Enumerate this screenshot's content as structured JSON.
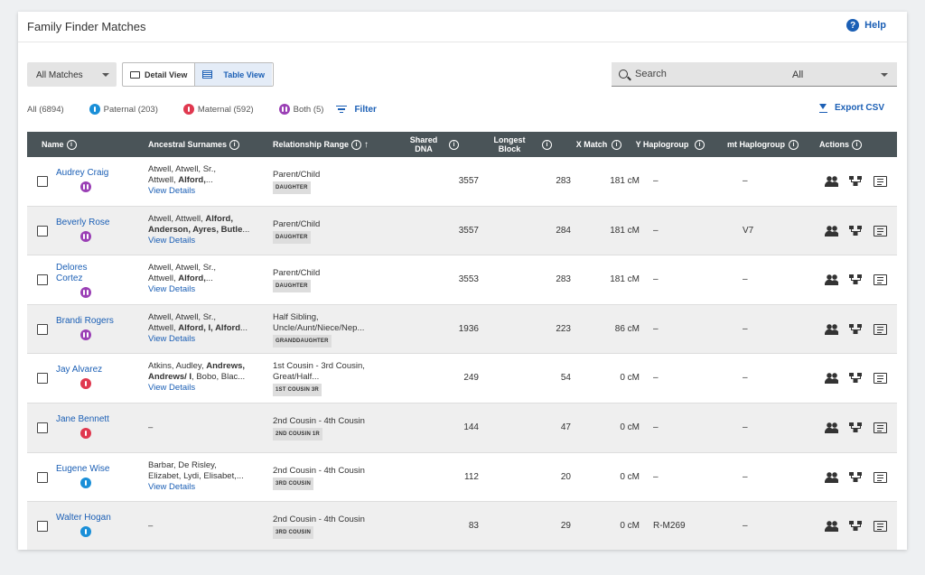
{
  "header": {
    "title": "Family Finder Matches",
    "help": "Help"
  },
  "toolbar": {
    "match_filter": "All Matches",
    "detail_view": "Detail View",
    "table_view": "Table View",
    "search_placeholder": "Search",
    "search_scope": "All"
  },
  "filters": {
    "all": "All (6894)",
    "paternal": "Paternal (203)",
    "maternal": "Maternal (592)",
    "both": "Both (5)",
    "filter": "Filter",
    "export": "Export CSV"
  },
  "colors": {
    "paternal": "#1a8fd8",
    "maternal": "#e0384f",
    "both": "#9a3fb5",
    "accent": "#1b5fb5",
    "table_header": "#4a5458"
  },
  "columns": {
    "name": "Name",
    "surnames": "Ancestral Surnames",
    "relationship": "Relationship Range",
    "shared": "Shared DNA",
    "longest": "Longest Block",
    "x": "X Match",
    "y": "Y Haplogroup",
    "mt": "mt Haplogroup",
    "actions": "Actions"
  },
  "rows": [
    {
      "name": "Audrey Craig",
      "side": "both",
      "surn_a": "Atwell, Atwell, Sr.,",
      "surn_b": "Attwell, ",
      "surn_bold": "Alford,",
      "surn_c": "...",
      "view": "View Details",
      "rel": "Parent/Child",
      "rel2": "",
      "tag": "DAUGHTER",
      "shared": "3557",
      "longest": "283",
      "x": "181 cM",
      "y": "–",
      "mt": "–"
    },
    {
      "name": "Beverly Rose",
      "side": "both",
      "surn_a": "Atwell, Attwell, ",
      "surn_bold_a": "Alford,",
      "surn_b": "",
      "surn_bold": "Anderson, Ayres, Butle",
      "surn_c": "...",
      "view": "View Details",
      "rel": "Parent/Child",
      "rel2": "",
      "tag": "DAUGHTER",
      "shared": "3557",
      "longest": "284",
      "x": "181 cM",
      "y": "–",
      "mt": "V7"
    },
    {
      "name": "Delores Cortez",
      "side": "both",
      "surn_a": "Atwell, Atwell, Sr.,",
      "surn_b": "Attwell, ",
      "surn_bold": "Alford,",
      "surn_c": "...",
      "view": "View Details",
      "rel": "Parent/Child",
      "rel2": "",
      "tag": "DAUGHTER",
      "shared": "3553",
      "longest": "283",
      "x": "181 cM",
      "y": "–",
      "mt": "–"
    },
    {
      "name": "Brandi Rogers",
      "side": "both",
      "surn_a": "Atwell, Atwell, Sr.,",
      "surn_b": "Attwell, ",
      "surn_bold": "Alford, I, Alford",
      "surn_c": "...",
      "view": "View Details",
      "rel": "Half Sibling,",
      "rel2": "Uncle/Aunt/Niece/Nep...",
      "tag": "GRANDDAUGHTER",
      "shared": "1936",
      "longest": "223",
      "x": "86 cM",
      "y": "–",
      "mt": "–"
    },
    {
      "name": "Jay Alvarez",
      "side": "maternal",
      "surn_a": "Atkins, Audley, ",
      "surn_bold_a": "Andrews,",
      "surn_b": "",
      "surn_bold": "Andrews/ I",
      "surn_c": ", Bobo, Blac...",
      "view": "View Details",
      "rel": "1st Cousin - 3rd Cousin,",
      "rel2": "Great/Half...",
      "tag": "1ST COUSIN 3R",
      "shared": "249",
      "longest": "54",
      "x": "0 cM",
      "y": "–",
      "mt": "–"
    },
    {
      "name": "Jane Bennett",
      "side": "maternal",
      "surn_a": "–",
      "surn_b": "",
      "surn_bold": "",
      "surn_c": "",
      "view": "",
      "rel": "2nd Cousin - 4th Cousin",
      "rel2": "",
      "tag": "2ND COUSIN 1R",
      "shared": "144",
      "longest": "47",
      "x": "0 cM",
      "y": "–",
      "mt": "–"
    },
    {
      "name": "Eugene Wise",
      "side": "paternal",
      "surn_a": "Barbar, De Risley,",
      "surn_b": "Elizabet, Lydi, Elisabet,",
      "surn_bold": "",
      "surn_c": "...",
      "view": "View Details",
      "rel": "2nd Cousin - 4th Cousin",
      "rel2": "",
      "tag": "3RD COUSIN",
      "shared": "112",
      "longest": "20",
      "x": "0 cM",
      "y": "–",
      "mt": "–"
    },
    {
      "name": "Walter Hogan",
      "side": "paternal",
      "surn_a": "–",
      "surn_b": "",
      "surn_bold": "",
      "surn_c": "",
      "view": "",
      "rel": "2nd Cousin - 4th Cousin",
      "rel2": "",
      "tag": "3RD COUSIN",
      "shared": "83",
      "longest": "29",
      "x": "0 cM",
      "y": "R-M269",
      "mt": "–"
    }
  ]
}
